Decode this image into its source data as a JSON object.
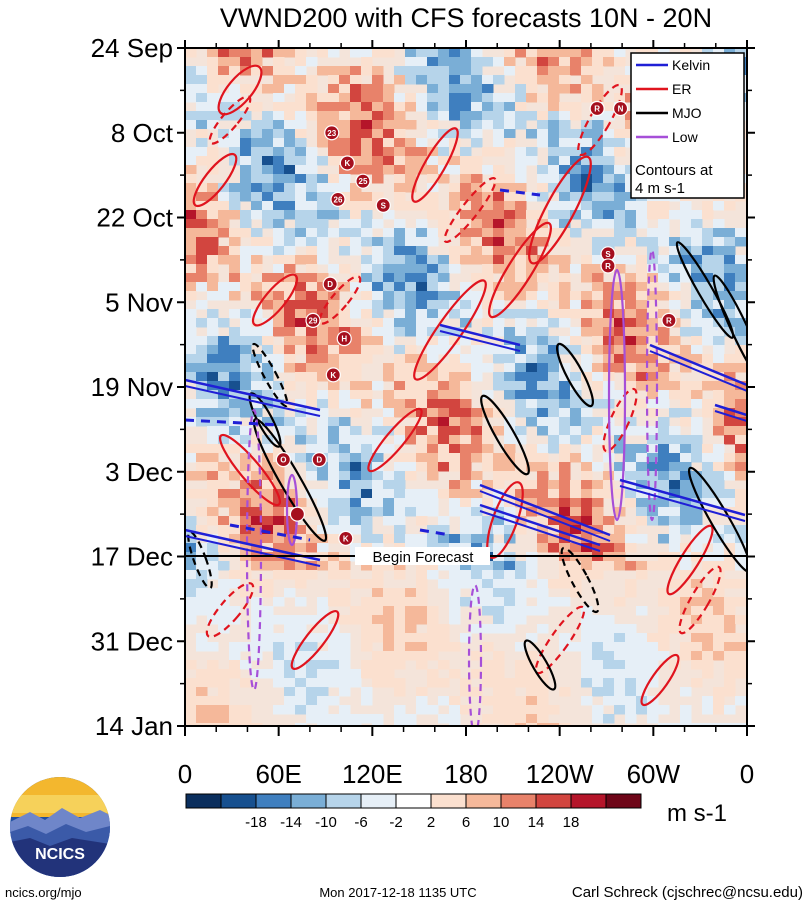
{
  "chart_data": {
    "type": "heatmap",
    "title": "VWND200 with CFS forecasts  10N - 20N",
    "y_axis": {
      "type": "time",
      "ticks": [
        "24 Sep",
        "8 Oct",
        "22 Oct",
        "5 Nov",
        "19 Nov",
        "3 Dec",
        "17 Dec",
        "31 Dec",
        "14 Jan"
      ],
      "range": [
        "24 Sep",
        "14 Jan"
      ]
    },
    "x_axis": {
      "type": "longitude",
      "ticks": [
        "0",
        "60E",
        "120E",
        "180",
        "120W",
        "60W",
        "0"
      ],
      "range": [
        0,
        360
      ]
    },
    "colorbar": {
      "units": "m s-1",
      "tick_labels": [
        "-18",
        "-14",
        "-10",
        "-6",
        "-2",
        "2",
        "6",
        "10",
        "14",
        "18"
      ],
      "colors": [
        "#0b2f5e",
        "#17508f",
        "#3f7fbf",
        "#7aaed6",
        "#b6d4ea",
        "#e6eff7",
        "#ffffff",
        "#fbe0cf",
        "#f5b89a",
        "#e8826a",
        "#d2453f",
        "#b5152a",
        "#6e0618"
      ]
    },
    "legend": {
      "position": "top-right",
      "entries": [
        {
          "label": "Kelvin",
          "color": "#1f1fd6",
          "style": "solid"
        },
        {
          "label": "ER",
          "color": "#e0141e",
          "style": "solid"
        },
        {
          "label": "MJO",
          "color": "#000000",
          "style": "solid"
        },
        {
          "label": "Low",
          "color": "#a64fd8",
          "style": "solid"
        }
      ],
      "note_line1": "Contours at",
      "note_line2": "4 m s-1"
    },
    "forecast_marker": {
      "date": "17 Dec",
      "label": "Begin Forecast"
    },
    "storm_markers": [
      {
        "label": "23",
        "lon": 94,
        "date": "8 Oct"
      },
      {
        "label": "K",
        "lon": 104,
        "date": "13 Oct"
      },
      {
        "label": "25",
        "lon": 114,
        "date": "16 Oct"
      },
      {
        "label": "26",
        "lon": 98,
        "date": "19 Oct"
      },
      {
        "label": "S",
        "lon": 127,
        "date": "20 Oct"
      },
      {
        "label": "R",
        "lon": 264,
        "date": "4 Oct"
      },
      {
        "label": "N",
        "lon": 279,
        "date": "4 Oct"
      },
      {
        "label": "S",
        "lon": 271,
        "date": "28 Oct"
      },
      {
        "label": "D",
        "lon": 93,
        "date": "2 Nov"
      },
      {
        "label": "29",
        "lon": 82,
        "date": "8 Nov"
      },
      {
        "label": "H",
        "lon": 102,
        "date": "11 Nov"
      },
      {
        "label": "R",
        "lon": 271,
        "date": "30 Oct"
      },
      {
        "label": "R",
        "lon": 310,
        "date": "8 Nov"
      },
      {
        "label": "K",
        "lon": 95,
        "date": "17 Nov"
      },
      {
        "label": "O",
        "lon": 63,
        "date": "1 Dec"
      },
      {
        "label": "D",
        "lon": 86,
        "date": "1 Dec"
      },
      {
        "label": "",
        "lon": 72,
        "date": "10 Dec"
      },
      {
        "label": "K",
        "lon": 103,
        "date": "14 Dec"
      }
    ]
  },
  "footer": {
    "left": "ncics.org/mjo",
    "center": "Mon 2017-12-18 1135 UTC",
    "right": "Carl Schreck (cjschrec@ncsu.edu)",
    "logo_text": "NCICS"
  }
}
